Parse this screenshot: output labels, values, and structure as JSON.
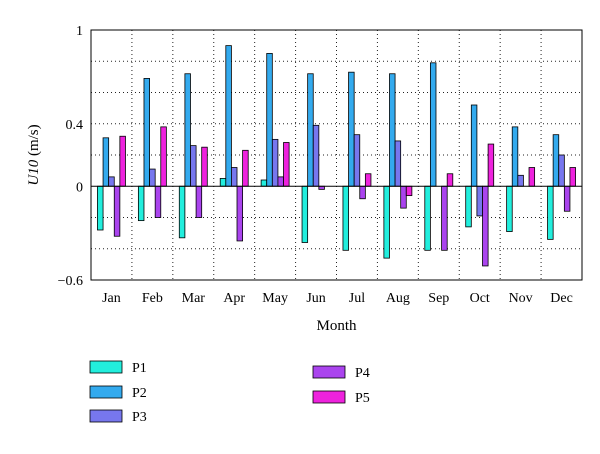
{
  "chart_data": {
    "type": "bar",
    "title": "",
    "xlabel": "Month",
    "ylabel": "U10 (m/s)",
    "ylim": [
      -0.6,
      1.0
    ],
    "yticks": [
      "1",
      "0.4",
      "0",
      "−0.6"
    ],
    "grid": true,
    "legend_position": "bottom",
    "categories": [
      "Jan",
      "Feb",
      "Mar",
      "Apr",
      "May",
      "Jun",
      "Jul",
      "Aug",
      "Sep",
      "Oct",
      "Nov",
      "Dec"
    ],
    "series": [
      {
        "name": "P1",
        "color": "#22eedd",
        "values": [
          -0.28,
          -0.22,
          -0.33,
          0.05,
          0.04,
          -0.36,
          -0.41,
          -0.46,
          -0.41,
          -0.26,
          -0.29,
          -0.34
        ]
      },
      {
        "name": "P2",
        "color": "#33aaee",
        "values": [
          0.31,
          0.69,
          0.72,
          0.9,
          0.85,
          0.72,
          0.73,
          0.72,
          0.79,
          0.52,
          0.38,
          0.33
        ]
      },
      {
        "name": "P3",
        "color": "#7777ee",
        "values": [
          0.06,
          0.11,
          0.26,
          0.12,
          0.3,
          0.39,
          0.33,
          0.29,
          0.0,
          -0.19,
          0.07,
          0.2
        ]
      },
      {
        "name": "P4",
        "color": "#aa44ee",
        "values": [
          -0.32,
          -0.2,
          -0.2,
          -0.35,
          0.06,
          -0.02,
          -0.08,
          -0.14,
          -0.41,
          -0.51,
          0.0,
          -0.16
        ]
      },
      {
        "name": "P5",
        "color": "#ee22dd",
        "values": [
          0.32,
          0.38,
          0.25,
          0.23,
          0.28,
          0.0,
          0.08,
          -0.06,
          0.08,
          0.27,
          0.12,
          0.12
        ]
      }
    ]
  }
}
